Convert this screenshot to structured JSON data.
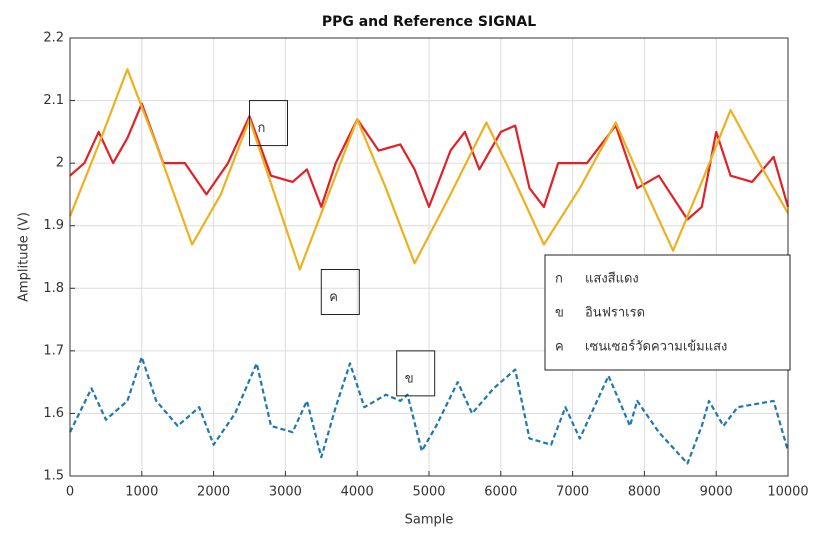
{
  "chart_data": {
    "type": "line",
    "title": "PPG and Reference SIGNAL",
    "x_label": "Sample",
    "y_label": "Amplitude (V)",
    "xlim": [
      0,
      10000
    ],
    "xticks": [
      0,
      1000,
      2000,
      3000,
      4000,
      5000,
      6000,
      7000,
      8000,
      9000,
      10000
    ],
    "ylim": [
      1.5,
      2.2
    ],
    "yticks": [
      1.5,
      1.6,
      1.7,
      1.8,
      1.9,
      2,
      2.1,
      2.2
    ],
    "grid": true,
    "series": [
      {
        "label": "ก",
        "name": "แสงสีแดง",
        "color": "#e02227",
        "dashed": false,
        "x": [
          0,
          200,
          400,
          600,
          800,
          1000,
          1300,
          1600,
          1900,
          2200,
          2500,
          2800,
          3100,
          3300,
          3500,
          3700,
          4000,
          4300,
          4600,
          4800,
          5000,
          5300,
          5500,
          5700,
          6000,
          6200,
          6400,
          6600,
          6800,
          7200,
          7600,
          7900,
          8200,
          8600,
          8800,
          9000,
          9200,
          9500,
          9800,
          10000
        ],
        "values": [
          1.98,
          2.0,
          2.05,
          2.0,
          2.04,
          2.095,
          2.0,
          2.0,
          1.95,
          2.0,
          2.075,
          1.98,
          1.97,
          1.99,
          1.93,
          2.0,
          2.07,
          2.02,
          2.03,
          1.99,
          1.93,
          2.02,
          2.05,
          1.99,
          2.05,
          2.06,
          1.96,
          1.93,
          2.0,
          2.0,
          2.06,
          1.96,
          1.98,
          1.91,
          1.93,
          2.05,
          1.98,
          1.97,
          2.01,
          1.93
        ]
      },
      {
        "label": "ข",
        "name": "อินฟราเรด",
        "color": "#1f77b4",
        "dashed": true,
        "x": [
          0,
          300,
          500,
          800,
          1000,
          1200,
          1500,
          1800,
          2000,
          2300,
          2600,
          2800,
          3100,
          3300,
          3500,
          3700,
          3900,
          4100,
          4400,
          4600,
          4700,
          4900,
          5100,
          5400,
          5600,
          5900,
          6200,
          6400,
          6700,
          6900,
          7100,
          7500,
          7800,
          7900,
          8200,
          8600,
          8800,
          8900,
          9100,
          9300,
          9800,
          10000
        ],
        "values": [
          1.57,
          1.64,
          1.59,
          1.62,
          1.69,
          1.62,
          1.58,
          1.61,
          1.55,
          1.6,
          1.68,
          1.58,
          1.57,
          1.62,
          1.53,
          1.61,
          1.68,
          1.61,
          1.63,
          1.62,
          1.63,
          1.54,
          1.58,
          1.65,
          1.6,
          1.64,
          1.67,
          1.56,
          1.55,
          1.61,
          1.56,
          1.66,
          1.58,
          1.62,
          1.57,
          1.52,
          1.58,
          1.62,
          1.58,
          1.61,
          1.62,
          1.54
        ]
      },
      {
        "label": "ค",
        "name": "เซนเซอร์วัดความเข้มแสง",
        "color": "#edb120",
        "dashed": false,
        "x": [
          0,
          400,
          800,
          1200,
          1700,
          2100,
          2500,
          2850,
          3200,
          3600,
          4000,
          4400,
          4800,
          5300,
          5800,
          6200,
          6600,
          7100,
          7600,
          8000,
          8400,
          8800,
          9200,
          9600,
          10000
        ],
        "values": [
          1.915,
          2.03,
          2.15,
          2.03,
          1.87,
          1.95,
          2.07,
          1.95,
          1.83,
          1.95,
          2.07,
          1.96,
          1.84,
          1.95,
          2.065,
          1.97,
          1.87,
          1.96,
          2.065,
          1.96,
          1.86,
          1.97,
          2.085,
          2.0,
          1.92
        ]
      }
    ],
    "annotations": [
      {
        "text": "ก",
        "x": 2500,
        "y": 2.1
      },
      {
        "text": "ค",
        "x": 3500,
        "y": 1.83
      },
      {
        "text": "ข",
        "x": 4550,
        "y": 1.7
      }
    ],
    "legend": "right"
  }
}
